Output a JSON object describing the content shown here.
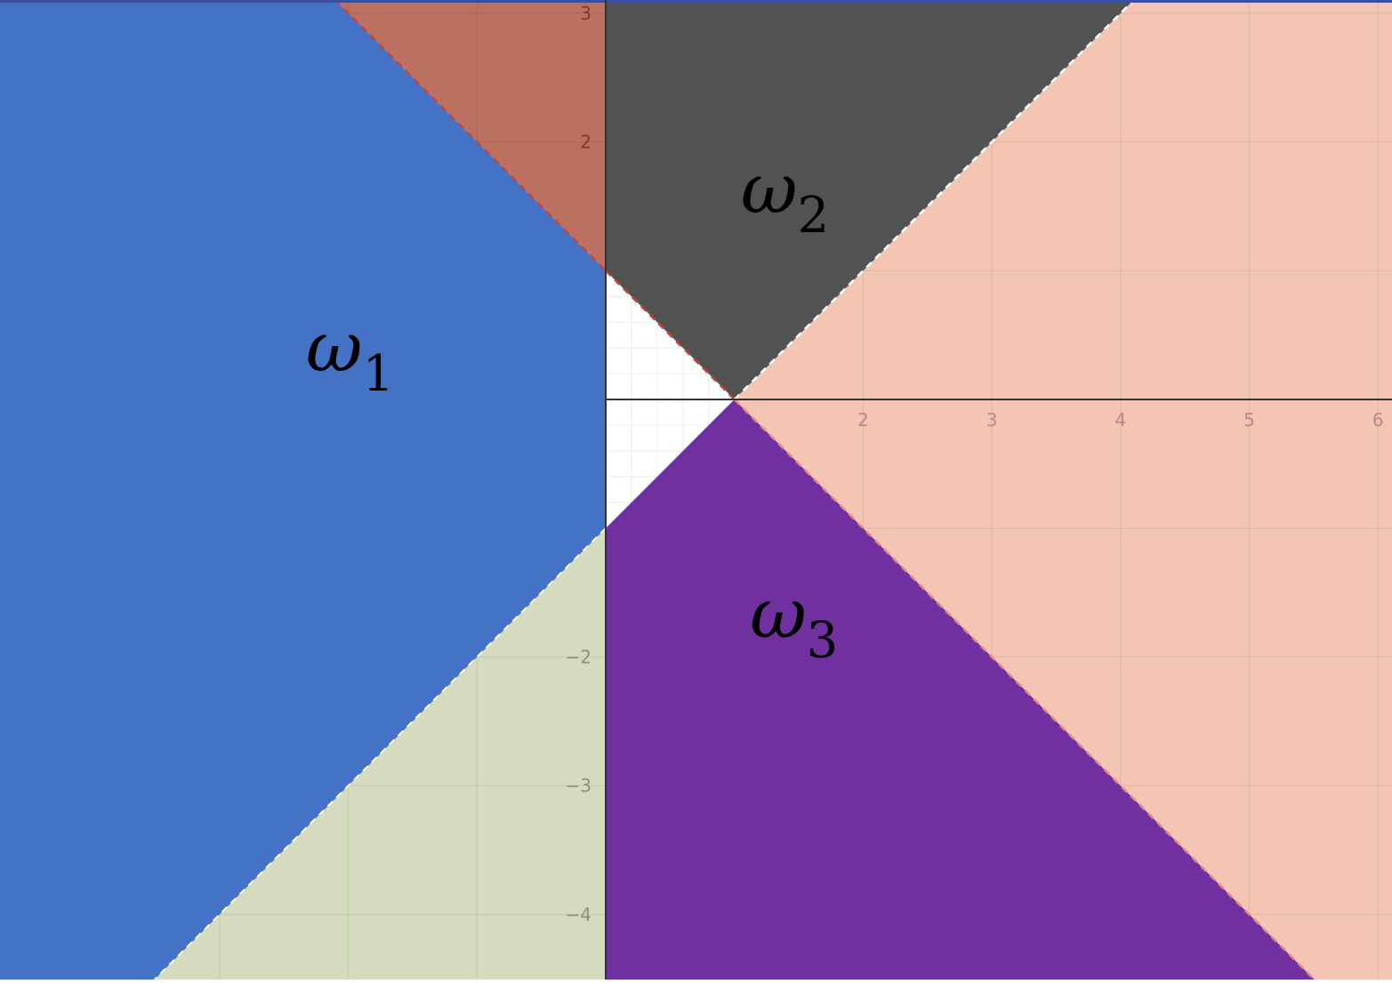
{
  "chart_data": {
    "type": "region-plot",
    "axes": {
      "x_ticks": [
        2,
        3,
        4,
        5,
        6
      ],
      "y_ticks": [
        3,
        2,
        -2,
        -3,
        -4
      ],
      "x_range": [
        -4.72,
        6.12
      ],
      "y_range": [
        -4.5,
        3.1
      ],
      "grid": true
    },
    "boundary_lines": [
      {
        "equation": "x = 0",
        "style": "dashed"
      },
      {
        "equation": "y = x - 1",
        "style": "dashed"
      },
      {
        "equation": "y = 1 - x",
        "style": "dashed"
      }
    ],
    "regions": [
      {
        "id": "omega1",
        "symbol": "ω",
        "subscript": "1",
        "color": "#4472C4",
        "condition": "x < 0, |y| < 1 - x"
      },
      {
        "id": "omega2",
        "symbol": "ω",
        "subscript": "2",
        "color": "#525252",
        "condition": "x > 0, y > |x - 1|"
      },
      {
        "id": "omega3",
        "symbol": "ω",
        "subscript": "3",
        "color": "#7030A0",
        "condition": "x > 0, y < -|x - 1|"
      }
    ],
    "shading": {
      "upper_left_color": "#BC7060",
      "right_color": "#F4C4B5",
      "lower_left_color": "#D4DBBE"
    }
  }
}
